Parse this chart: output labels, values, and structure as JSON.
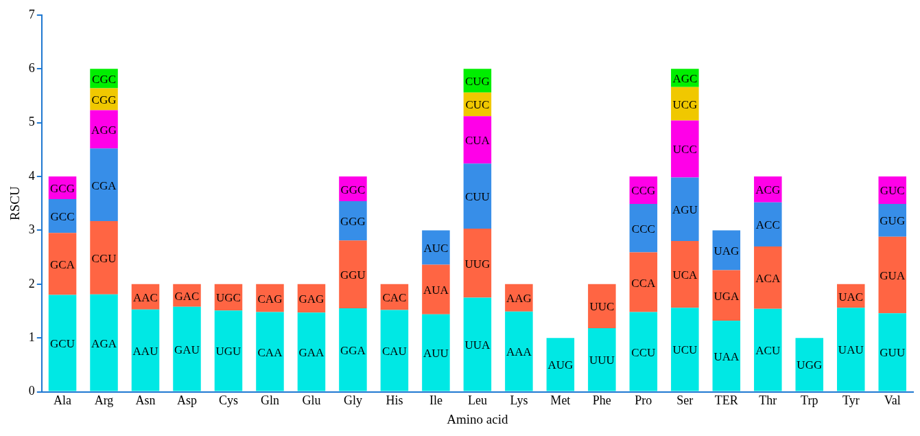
{
  "chart_data": {
    "type": "bar",
    "stacked": true,
    "xlabel": "Amino acid",
    "ylabel": "RSCU",
    "ylim": [
      0,
      7
    ],
    "yticks": [
      0,
      1,
      2,
      3,
      4,
      5,
      6,
      7
    ],
    "grid": false,
    "legend": false,
    "categories": [
      "Ala",
      "Arg",
      "Asn",
      "Asp",
      "Cys",
      "Gln",
      "Glu",
      "Gly",
      "His",
      "Ile",
      "Leu",
      "Lys",
      "Met",
      "Phe",
      "Pro",
      "Ser",
      "TER",
      "Thr",
      "Trp",
      "Tyr",
      "Val"
    ],
    "series": [
      {
        "color": "#00e8e4",
        "values": [
          1.8,
          1.81,
          1.53,
          1.58,
          1.51,
          1.48,
          1.47,
          1.55,
          1.52,
          1.44,
          1.75,
          1.49,
          1,
          1.18,
          1.48,
          1.56,
          1.32,
          1.54,
          1,
          1.56,
          1.46
        ],
        "value_labels": [
          "GCU",
          "AGA",
          "AAU",
          "GAU",
          "UGU",
          "CAA",
          "GAA",
          "GGA",
          "CAU",
          "AUU",
          "UUA",
          "AAA",
          "AUG",
          "UUU",
          "CCU",
          "UCU",
          "UAA",
          "ACU",
          "UGG",
          "UAU",
          "GUU"
        ]
      },
      {
        "color": "#ff6543",
        "values": [
          1.15,
          1.36,
          0.47,
          0.42,
          0.49,
          0.52,
          0.53,
          1.26,
          0.48,
          0.92,
          1.28,
          0.51,
          null,
          0.82,
          1.11,
          1.24,
          0.94,
          1.16,
          null,
          0.44,
          1.42
        ],
        "value_labels": [
          "GCA",
          "CGU",
          "AAC",
          "GAC",
          "UGC",
          "CAG",
          "GAG",
          "GGU",
          "CAC",
          "AUA",
          "UUG",
          "AAG",
          null,
          "UUC",
          "CCA",
          "UCA",
          "UGA",
          "ACA",
          null,
          "UAC",
          "GUA"
        ]
      },
      {
        "color": "#378ee8",
        "values": [
          0.63,
          1.35,
          null,
          null,
          null,
          null,
          null,
          0.73,
          null,
          0.64,
          1.21,
          null,
          null,
          null,
          0.9,
          1.18,
          0.74,
          0.82,
          null,
          null,
          0.61
        ],
        "value_labels": [
          "GCC",
          "CGA",
          null,
          null,
          null,
          null,
          null,
          "GGG",
          null,
          "AUC",
          "CUU",
          null,
          null,
          null,
          "CCC",
          "AGU",
          "UAG",
          "ACC",
          null,
          null,
          "GUG"
        ]
      },
      {
        "color": "#ff00e8",
        "values": [
          0.42,
          0.71,
          null,
          null,
          null,
          null,
          null,
          0.46,
          null,
          null,
          0.88,
          null,
          null,
          null,
          0.51,
          1.06,
          null,
          0.48,
          null,
          null,
          0.51
        ],
        "value_labels": [
          "GCG",
          "AGG",
          null,
          null,
          null,
          null,
          null,
          "GGC",
          null,
          null,
          "CUA",
          null,
          null,
          null,
          "CCG",
          "UCC",
          null,
          "ACG",
          null,
          null,
          "GUC"
        ]
      },
      {
        "color": "#f0c800",
        "values": [
          null,
          0.41,
          null,
          null,
          null,
          null,
          null,
          null,
          null,
          null,
          0.44,
          null,
          null,
          null,
          null,
          0.62,
          null,
          null,
          null,
          null,
          null
        ],
        "value_labels": [
          null,
          "CGG",
          null,
          null,
          null,
          null,
          null,
          null,
          null,
          null,
          "CUC",
          null,
          null,
          null,
          null,
          "UCG",
          null,
          null,
          null,
          null,
          null
        ]
      },
      {
        "color": "#00ee00",
        "values": [
          null,
          0.36,
          null,
          null,
          null,
          null,
          null,
          null,
          null,
          null,
          0.44,
          null,
          null,
          null,
          null,
          0.34,
          null,
          null,
          null,
          null,
          null
        ],
        "value_labels": [
          null,
          "CGC",
          null,
          null,
          null,
          null,
          null,
          null,
          null,
          null,
          "CUG",
          null,
          null,
          null,
          null,
          "AGC",
          null,
          null,
          null,
          null,
          null
        ]
      }
    ]
  }
}
